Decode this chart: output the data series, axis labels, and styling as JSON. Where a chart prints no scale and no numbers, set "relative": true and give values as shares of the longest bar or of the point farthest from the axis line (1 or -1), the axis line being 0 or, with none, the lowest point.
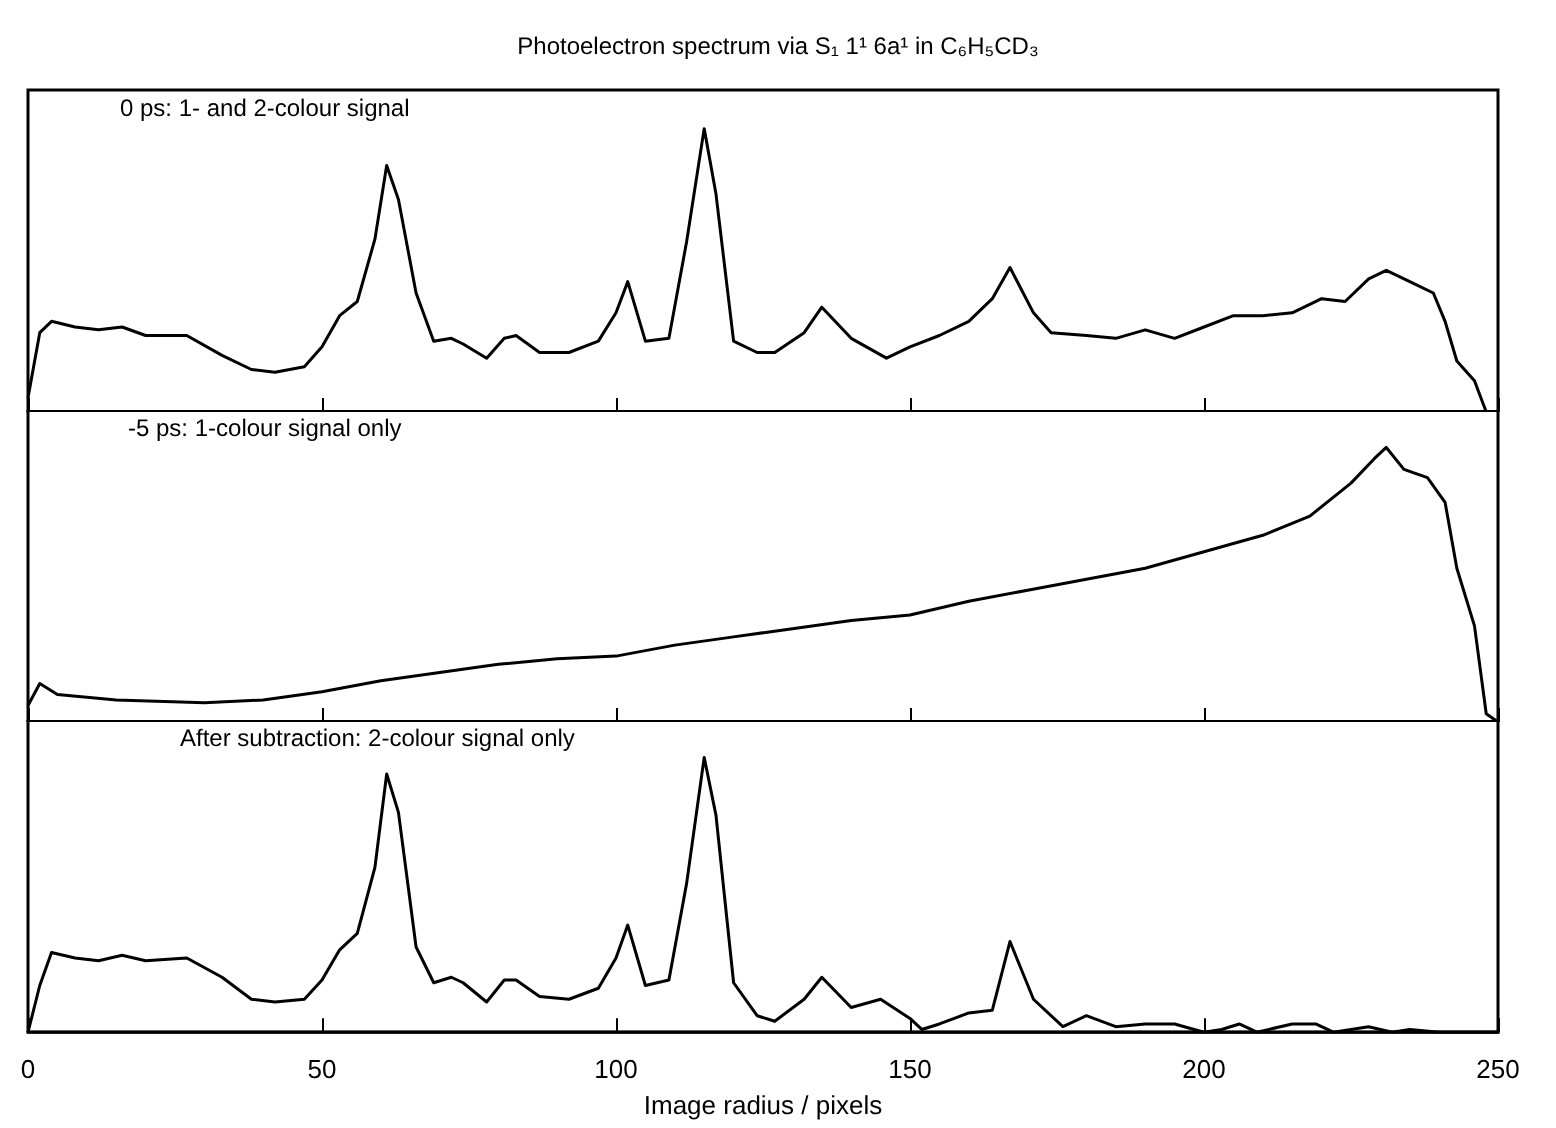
{
  "chart_data": [
    {
      "type": "line",
      "title": "Photoelectron spectrum via S₁ 1¹ 6a¹ in C₆H₅CD₃",
      "annotations": [
        "0 ps: 1- and 2-colour signal"
      ],
      "relative": true,
      "xlim": [
        0,
        250
      ],
      "xticks": [
        0,
        50,
        100,
        150,
        200,
        250
      ],
      "tick_labels": false,
      "series": [
        {
          "color": "#000000",
          "x": [
            0,
            2,
            4,
            8,
            12,
            16,
            20,
            27,
            33,
            38,
            42,
            47,
            50,
            53,
            56,
            59,
            61,
            63,
            66,
            69,
            72,
            74,
            78,
            81,
            83,
            87,
            92,
            97,
            100,
            102,
            105,
            109,
            112,
            115,
            117,
            120,
            124,
            127,
            132,
            135,
            140,
            146,
            150,
            155,
            160,
            164,
            167,
            171,
            174,
            180,
            185,
            190,
            195,
            200,
            205,
            210,
            215,
            220,
            224,
            228,
            231,
            235,
            239,
            241,
            243,
            246,
            248,
            250
          ],
          "values": [
            0.05,
            0.28,
            0.32,
            0.3,
            0.29,
            0.3,
            0.27,
            0.27,
            0.2,
            0.15,
            0.14,
            0.16,
            0.23,
            0.34,
            0.39,
            0.61,
            0.87,
            0.75,
            0.42,
            0.25,
            0.26,
            0.24,
            0.19,
            0.26,
            0.27,
            0.21,
            0.21,
            0.25,
            0.35,
            0.46,
            0.25,
            0.26,
            0.6,
            1.0,
            0.77,
            0.25,
            0.21,
            0.21,
            0.28,
            0.37,
            0.26,
            0.19,
            0.23,
            0.27,
            0.32,
            0.4,
            0.51,
            0.35,
            0.28,
            0.27,
            0.26,
            0.29,
            0.26,
            0.3,
            0.34,
            0.34,
            0.35,
            0.4,
            0.39,
            0.47,
            0.5,
            0.46,
            0.42,
            0.32,
            0.18,
            0.11,
            0,
            0
          ]
        }
      ]
    },
    {
      "type": "line",
      "annotations": [
        "-5 ps: 1-colour signal only"
      ],
      "relative": true,
      "xlim": [
        0,
        250
      ],
      "xticks": [
        0,
        50,
        100,
        150,
        200,
        250
      ],
      "tick_labels": false,
      "series": [
        {
          "color": "#000000",
          "x": [
            0,
            2,
            5,
            15,
            30,
            40,
            50,
            60,
            70,
            80,
            90,
            100,
            110,
            120,
            130,
            140,
            150,
            160,
            170,
            180,
            190,
            200,
            210,
            218,
            225,
            229,
            231,
            234,
            238,
            241,
            243,
            246,
            248,
            250
          ],
          "values": [
            0.06,
            0.14,
            0.1,
            0.08,
            0.07,
            0.08,
            0.11,
            0.15,
            0.18,
            0.21,
            0.23,
            0.24,
            0.28,
            0.31,
            0.34,
            0.37,
            0.39,
            0.44,
            0.48,
            0.52,
            0.56,
            0.62,
            0.68,
            0.75,
            0.87,
            0.96,
            1.0,
            0.92,
            0.89,
            0.8,
            0.56,
            0.35,
            0.03,
            0
          ]
        }
      ]
    },
    {
      "type": "line",
      "annotations": [
        "After subtraction: 2-colour signal only"
      ],
      "xlabel": "Image radius / pixels",
      "relative": true,
      "xlim": [
        0,
        250
      ],
      "xticks": [
        0,
        50,
        100,
        150,
        200,
        250
      ],
      "tick_labels": "x",
      "series": [
        {
          "color": "#000000",
          "x": [
            0,
            2,
            4,
            8,
            12,
            16,
            20,
            27,
            33,
            38,
            42,
            47,
            50,
            53,
            56,
            59,
            61,
            63,
            66,
            69,
            72,
            74,
            78,
            81,
            83,
            87,
            92,
            97,
            100,
            102,
            105,
            109,
            112,
            115,
            117,
            120,
            124,
            127,
            132,
            135,
            140,
            145,
            150,
            152,
            155,
            160,
            164,
            167,
            171,
            176,
            180,
            185,
            190,
            195,
            200,
            203,
            206,
            209,
            215,
            219,
            222,
            228,
            232,
            235,
            240,
            250
          ],
          "values": [
            0,
            0.17,
            0.29,
            0.27,
            0.26,
            0.28,
            0.26,
            0.27,
            0.2,
            0.12,
            0.11,
            0.12,
            0.19,
            0.3,
            0.36,
            0.6,
            0.94,
            0.8,
            0.31,
            0.18,
            0.2,
            0.18,
            0.11,
            0.19,
            0.19,
            0.13,
            0.12,
            0.16,
            0.27,
            0.39,
            0.17,
            0.19,
            0.54,
            1.0,
            0.79,
            0.18,
            0.06,
            0.04,
            0.12,
            0.2,
            0.09,
            0.12,
            0.05,
            0.01,
            0.03,
            0.07,
            0.08,
            0.33,
            0.12,
            0.02,
            0.06,
            0.02,
            0.03,
            0.03,
            0,
            0.01,
            0.03,
            0,
            0.03,
            0.03,
            0,
            0.02,
            0,
            0.01,
            0,
            0
          ]
        }
      ]
    }
  ]
}
